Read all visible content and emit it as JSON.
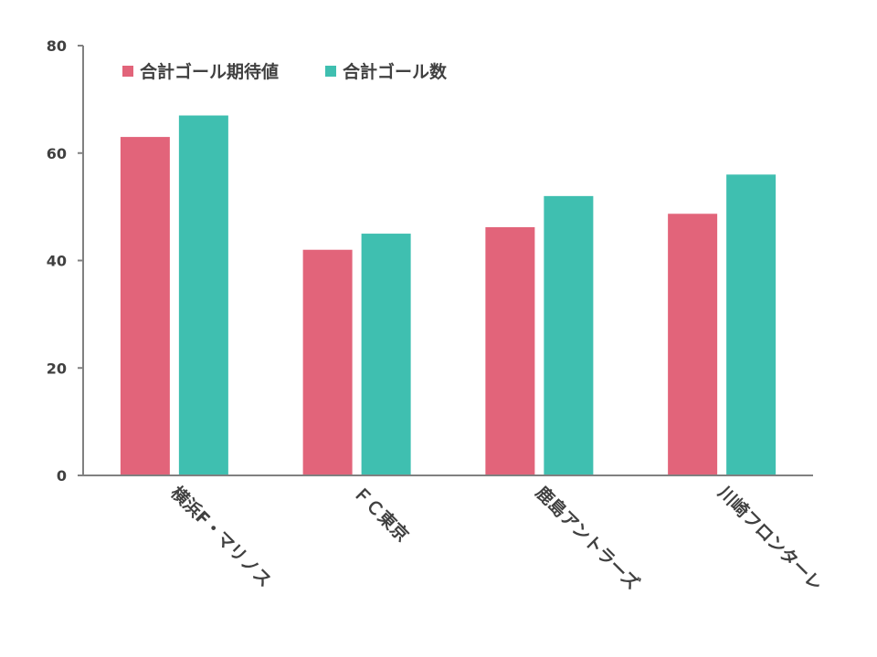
{
  "chart_data": {
    "type": "bar",
    "categories": [
      "横浜F・マリノス",
      "ＦＣ東京",
      "鹿島アントラーズ",
      "川崎フロンターレ"
    ],
    "series": [
      {
        "name": "合計ゴール期待値",
        "color": "#e2647a",
        "values": [
          63,
          42,
          46.2,
          48.7
        ]
      },
      {
        "name": "合計ゴール数",
        "color": "#3fbfb0",
        "values": [
          67,
          45,
          52,
          56
        ]
      }
    ],
    "ylim": [
      0,
      80
    ],
    "yticks": [
      0,
      20,
      40,
      60,
      80
    ],
    "legend_position": "top-left",
    "grid": false,
    "title": "",
    "xlabel": "",
    "ylabel": ""
  }
}
